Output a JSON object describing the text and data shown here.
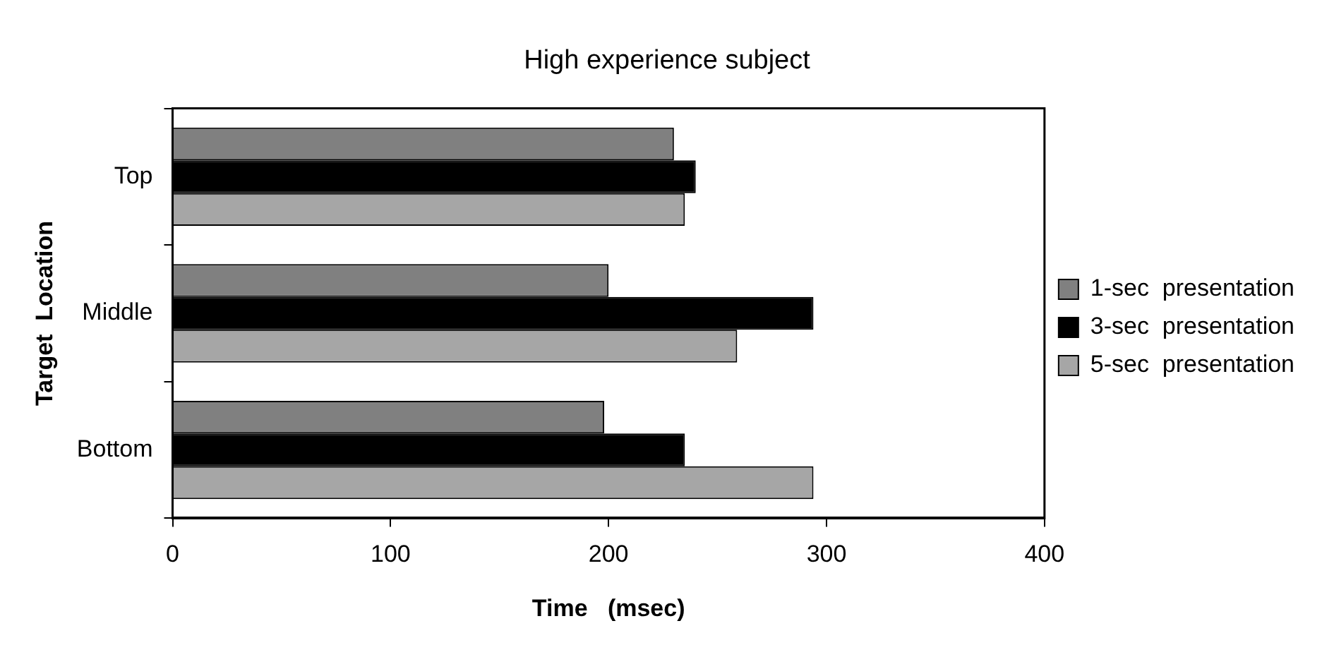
{
  "chart_data": {
    "type": "bar",
    "orientation": "horizontal",
    "title": "High experience subject",
    "xlabel": "Time   (msec)",
    "ylabel": "Target  Location",
    "categories": [
      "Top",
      "Middle",
      "Bottom"
    ],
    "series": [
      {
        "name": "1-sec  presentation",
        "color": "#808080",
        "values": [
          230,
          200,
          198
        ]
      },
      {
        "name": "3-sec  presentation",
        "color": "#000000",
        "values": [
          240,
          294,
          235
        ]
      },
      {
        "name": "5-sec  presentation",
        "color": "#a6a6a6",
        "values": [
          235,
          259,
          294
        ]
      }
    ],
    "xlim": [
      0,
      400
    ],
    "xticks": [
      0,
      100,
      200,
      300,
      400
    ],
    "grid": false,
    "legend": "right"
  }
}
